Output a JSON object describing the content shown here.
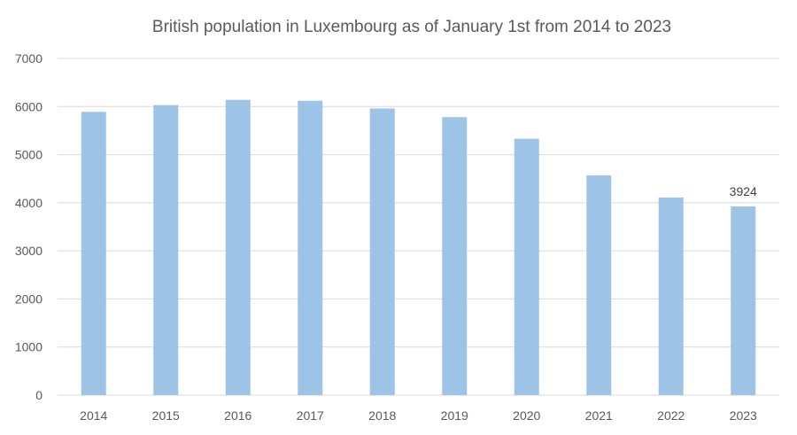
{
  "chart_data": {
    "type": "bar",
    "title": "British population in Luxembourg as of January 1st from 2014 to 2023",
    "xlabel": "",
    "ylabel": "",
    "categories": [
      "2014",
      "2015",
      "2016",
      "2017",
      "2018",
      "2019",
      "2020",
      "2021",
      "2022",
      "2023"
    ],
    "values": [
      5890,
      6030,
      6140,
      6120,
      5960,
      5780,
      5330,
      4570,
      4110,
      3924
    ],
    "ylim": [
      0,
      7000
    ],
    "yticks": [
      0,
      1000,
      2000,
      3000,
      4000,
      5000,
      6000,
      7000
    ],
    "ytick_labels": [
      "0",
      "1000",
      "2000",
      "3000",
      "4000",
      "5000",
      "6000",
      "7000"
    ],
    "data_labels": [
      {
        "category": "2023",
        "text": "3924"
      }
    ],
    "grid": true,
    "legend": "none",
    "bar_color": "#9dc3e6",
    "grid_color": "#d9d9d9",
    "text_color": "#595959"
  }
}
